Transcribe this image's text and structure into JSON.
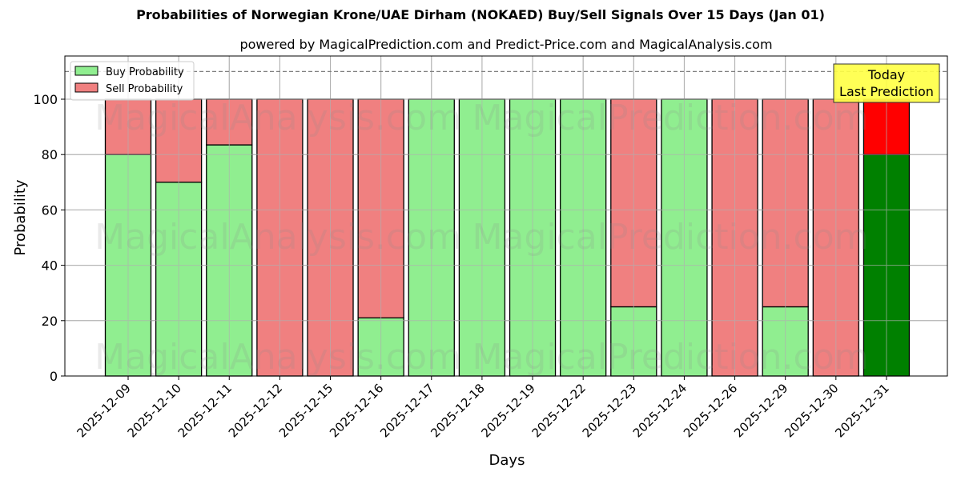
{
  "header": {
    "title": "Probabilities of Norwegian Krone/UAE Dirham (NOKAED) Buy/Sell Signals Over 15 Days (Jan 01)",
    "subtitle": "powered by MagicalPrediction.com and Predict-Price.com and MagicalAnalysis.com"
  },
  "legend": {
    "buy_label": "Buy Probability",
    "sell_label": "Sell Probability"
  },
  "annotation": {
    "line1": "Today",
    "line2": "Last Prediction"
  },
  "watermarks": [
    "MagicalAnalysis.com",
    "MagicalPrediction.com"
  ],
  "colors": {
    "buy": "#90ee90",
    "sell": "#f08080",
    "today_buy": "#008000",
    "today_sell": "#ff0000",
    "annotation_bg": "#ffff44",
    "grid": "#b0b0b0",
    "dashed_line": "#808080"
  },
  "chart_data": {
    "type": "bar",
    "stacked": true,
    "title": "Probabilities of Norwegian Krone/UAE Dirham (NOKAED) Buy/Sell Signals Over 15 Days (Jan 01)",
    "subtitle": "powered by MagicalPrediction.com and Predict-Price.com and MagicalAnalysis.com",
    "xlabel": "Days",
    "ylabel": "Probability",
    "ylim": [
      0,
      115
    ],
    "yticks": [
      0,
      20,
      40,
      60,
      80,
      100
    ],
    "reference_line": 110,
    "grid": true,
    "legend_position": "upper left",
    "categories": [
      "2025-12-09",
      "2025-12-10",
      "2025-12-11",
      "2025-12-12",
      "2025-12-15",
      "2025-12-16",
      "2025-12-17",
      "2025-12-18",
      "2025-12-19",
      "2025-12-22",
      "2025-12-23",
      "2025-12-24",
      "2025-12-26",
      "2025-12-29",
      "2025-12-30",
      "2025-12-31"
    ],
    "series": [
      {
        "name": "Buy Probability",
        "values": [
          80,
          70,
          83.5,
          0,
          0,
          21,
          100,
          100,
          100,
          100,
          25,
          100,
          0,
          25,
          0,
          80
        ]
      },
      {
        "name": "Sell Probability",
        "values": [
          20,
          30,
          16.5,
          100,
          100,
          79,
          0,
          0,
          0,
          0,
          75,
          0,
          100,
          75,
          100,
          20
        ]
      }
    ],
    "highlighted_category": "2025-12-31",
    "annotations": [
      "Today",
      "Last Prediction"
    ]
  }
}
